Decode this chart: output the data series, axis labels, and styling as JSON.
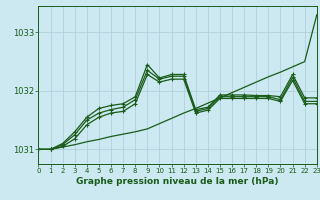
{
  "bg_color": "#cce8f0",
  "grid_color": "#aaccd8",
  "line_color": "#1a5c1a",
  "title": "Graphe pression niveau de la mer (hPa)",
  "xlim": [
    0,
    23
  ],
  "ylim": [
    1030.75,
    1033.45
  ],
  "yticks": [
    1031,
    1032,
    1033
  ],
  "xticks": [
    0,
    1,
    2,
    3,
    4,
    5,
    6,
    7,
    8,
    9,
    10,
    11,
    12,
    13,
    14,
    15,
    16,
    17,
    18,
    19,
    20,
    21,
    22,
    23
  ],
  "s1_x": [
    0,
    1,
    2,
    3,
    4,
    5,
    6,
    7,
    8,
    9,
    10,
    11,
    12,
    13,
    14,
    15,
    16,
    17,
    18,
    19,
    20,
    21,
    22,
    23
  ],
  "s1_y": [
    1031.0,
    1031.0,
    1031.04,
    1031.08,
    1031.13,
    1031.17,
    1031.22,
    1031.26,
    1031.3,
    1031.35,
    1031.44,
    1031.53,
    1031.62,
    1031.7,
    1031.79,
    1031.88,
    1031.97,
    1032.06,
    1032.15,
    1032.24,
    1032.32,
    1032.41,
    1032.5,
    1033.3
  ],
  "s2_x": [
    0,
    1,
    2,
    3,
    4,
    5,
    6,
    7,
    8,
    9,
    10,
    11,
    12,
    13,
    14,
    15,
    16,
    17,
    18,
    19,
    20,
    21,
    22,
    23
  ],
  "s2_y": [
    1031.0,
    1031.0,
    1031.1,
    1031.3,
    1031.55,
    1031.7,
    1031.75,
    1031.78,
    1031.9,
    1032.45,
    1032.22,
    1032.28,
    1032.28,
    1031.68,
    1031.72,
    1031.93,
    1031.93,
    1031.93,
    1031.92,
    1031.92,
    1031.9,
    1032.28,
    1031.88,
    1031.88
  ],
  "s3_x": [
    0,
    1,
    2,
    3,
    4,
    5,
    6,
    7,
    8,
    9,
    10,
    11,
    12,
    13,
    14,
    15,
    16,
    17,
    18,
    19,
    20,
    21,
    22,
    23
  ],
  "s3_y": [
    1031.0,
    1031.0,
    1031.08,
    1031.25,
    1031.5,
    1031.62,
    1031.68,
    1031.72,
    1031.85,
    1032.35,
    1032.2,
    1032.25,
    1032.25,
    1031.65,
    1031.7,
    1031.9,
    1031.9,
    1031.9,
    1031.9,
    1031.9,
    1031.85,
    1032.23,
    1031.82,
    1031.82
  ],
  "s4_x": [
    0,
    1,
    2,
    3,
    4,
    5,
    6,
    7,
    8,
    9,
    10,
    11,
    12,
    13,
    14,
    15,
    16,
    17,
    18,
    19,
    20,
    21,
    22,
    23
  ],
  "s4_y": [
    1031.0,
    1031.0,
    1031.05,
    1031.18,
    1031.42,
    1031.55,
    1031.62,
    1031.65,
    1031.78,
    1032.28,
    1032.15,
    1032.2,
    1032.2,
    1031.62,
    1031.67,
    1031.87,
    1031.87,
    1031.87,
    1031.87,
    1031.87,
    1031.82,
    1032.18,
    1031.78,
    1031.78
  ]
}
